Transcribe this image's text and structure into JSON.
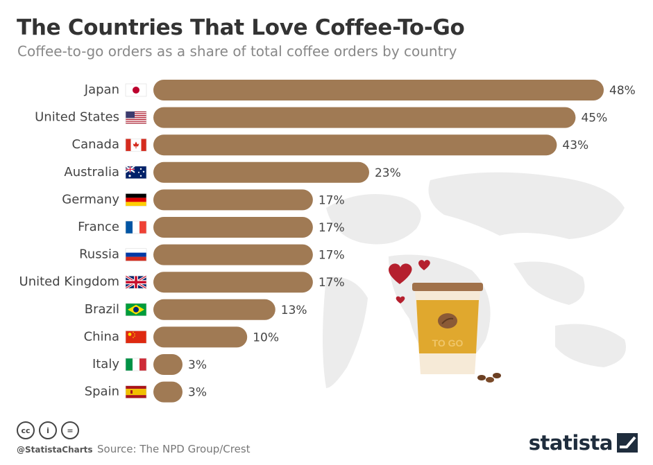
{
  "title": "The Countries That Love Coffee-To-Go",
  "subtitle": "Coffee-to-go orders as a share of total coffee orders by country",
  "chart_data": {
    "type": "bar",
    "orientation": "horizontal",
    "title": "The Countries That Love Coffee-To-Go",
    "subtitle": "Coffee-to-go orders as a share of total coffee orders by country",
    "categories": [
      "Japan",
      "United States",
      "Canada",
      "Australia",
      "Germany",
      "France",
      "Russia",
      "United Kingdom",
      "Brazil",
      "China",
      "Italy",
      "Spain"
    ],
    "values": [
      48,
      45,
      43,
      23,
      17,
      17,
      17,
      17,
      13,
      10,
      3,
      3
    ],
    "value_labels": [
      "48%",
      "45%",
      "43%",
      "23%",
      "17%",
      "17%",
      "17%",
      "17%",
      "13%",
      "10%",
      "3%",
      "3%"
    ],
    "unit": "%",
    "xlim": [
      0,
      48
    ],
    "grid": false,
    "bar_color": "#a07a54"
  },
  "flags": [
    "japan-flag-icon",
    "us-flag-icon",
    "canada-flag-icon",
    "australia-flag-icon",
    "germany-flag-icon",
    "france-flag-icon",
    "russia-flag-icon",
    "uk-flag-icon",
    "brazil-flag-icon",
    "china-flag-icon",
    "italy-flag-icon",
    "spain-flag-icon"
  ],
  "illustration": {
    "cup_text": "TO GO",
    "cup_color": "#e0a82e",
    "heart_color": "#b5202e"
  },
  "footer": {
    "cc_labels": [
      "cc",
      "i",
      "="
    ],
    "handle": "@StatistaCharts",
    "source": "Source: The NPD Group/Crest",
    "brand": "statista"
  }
}
